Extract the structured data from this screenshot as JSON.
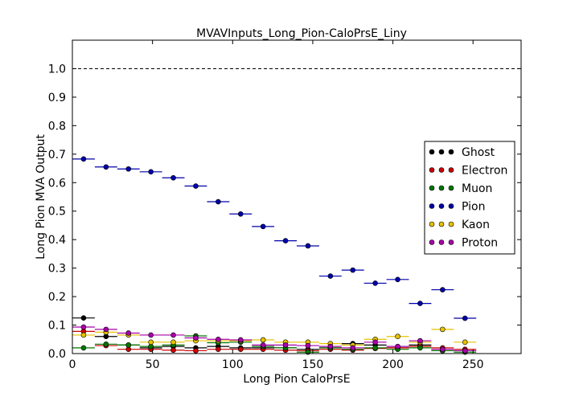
{
  "chart_data": {
    "type": "scatter",
    "title": "MVAVInputs_Long_Pion-CaloPrsE_Liny",
    "xlabel": "Long Pion CaloPrsE",
    "ylabel": "Long Pion MVA Output",
    "xlim": [
      0,
      280
    ],
    "ylim": [
      0,
      1.1
    ],
    "xticks": [
      0,
      50,
      100,
      150,
      200,
      250
    ],
    "yticks": [
      0.0,
      0.1,
      0.2,
      0.3,
      0.4,
      0.5,
      0.6,
      0.7,
      0.8,
      0.9,
      1.0
    ],
    "xtick_labels": [
      "0",
      "50",
      "100",
      "150",
      "200",
      "250"
    ],
    "ytick_labels": [
      "0.0",
      "0.1",
      "0.2",
      "0.3",
      "0.4",
      "0.5",
      "0.6",
      "0.7",
      "0.8",
      "0.9",
      "1.0"
    ],
    "reference_line": 1.0,
    "bin_half_width": 7,
    "x": [
      7,
      21,
      35,
      49,
      63,
      77,
      91,
      105,
      119,
      133,
      147,
      161,
      175,
      189,
      203,
      217,
      231,
      245
    ],
    "legend_position": "center-right",
    "series": [
      {
        "name": "Ghost",
        "color": "#000000",
        "y": [
          0.125,
          0.06,
          0.03,
          0.02,
          0.025,
          0.02,
          0.025,
          0.02,
          0.02,
          0.02,
          0.015,
          0.02,
          0.035,
          0.03,
          0.02,
          0.03,
          0.01,
          0.01
        ]
      },
      {
        "name": "Electron",
        "color": "#cc0000",
        "y": [
          0.078,
          0.028,
          0.015,
          0.015,
          0.012,
          0.01,
          0.015,
          0.015,
          0.015,
          0.012,
          0.01,
          0.015,
          0.012,
          0.018,
          0.02,
          0.025,
          0.02,
          0.015
        ]
      },
      {
        "name": "Muon",
        "color": "#007700",
        "y": [
          0.02,
          0.033,
          0.03,
          0.025,
          0.03,
          0.062,
          0.038,
          0.04,
          0.025,
          0.02,
          0.005,
          0.02,
          0.015,
          0.02,
          0.015,
          0.02,
          0.01,
          0.005
        ]
      },
      {
        "name": "Pion",
        "color": "#0000aa",
        "y": [
          0.683,
          0.655,
          0.648,
          0.638,
          0.617,
          0.588,
          0.533,
          0.49,
          0.446,
          0.396,
          0.378,
          0.272,
          0.293,
          0.247,
          0.26,
          0.176,
          0.224,
          0.124
        ]
      },
      {
        "name": "Kaon",
        "color": "#e6c200",
        "y": [
          0.065,
          0.075,
          0.065,
          0.04,
          0.04,
          0.045,
          0.045,
          0.045,
          0.048,
          0.04,
          0.04,
          0.035,
          0.03,
          0.05,
          0.06,
          0.04,
          0.085,
          0.04
        ]
      },
      {
        "name": "Proton",
        "color": "#aa00aa",
        "y": [
          0.093,
          0.085,
          0.072,
          0.065,
          0.065,
          0.055,
          0.05,
          0.048,
          0.03,
          0.03,
          0.028,
          0.025,
          0.02,
          0.04,
          0.025,
          0.045,
          0.015,
          0.01
        ]
      }
    ]
  }
}
